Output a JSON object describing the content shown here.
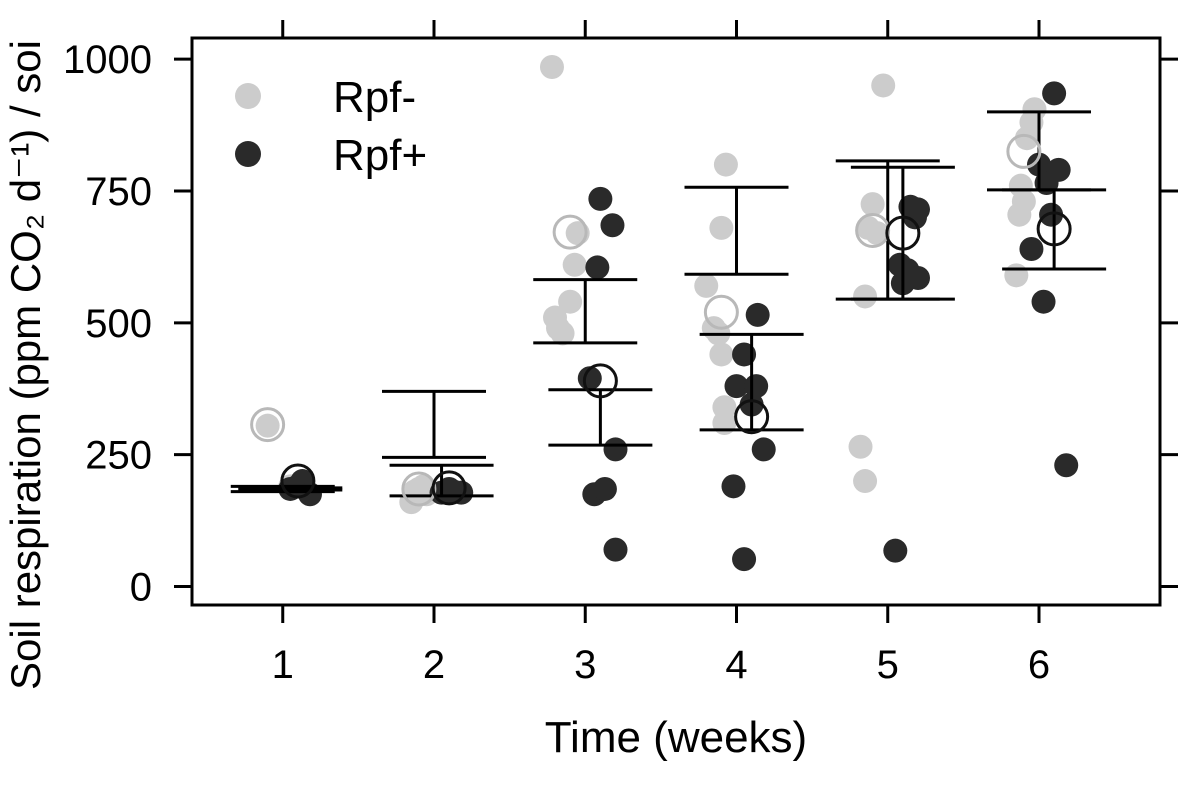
{
  "chart_data": {
    "type": "scatter",
    "xlabel": "Time (weeks)",
    "ylabel": "Soil respiration (ppm CO₂ d⁻¹) / soi",
    "xlim": [
      0.4,
      6.8
    ],
    "ylim": [
      -35,
      1040
    ],
    "x_ticks": [
      1,
      2,
      3,
      4,
      5,
      6
    ],
    "x_tick_labels": [
      "1",
      "2",
      "3",
      "4",
      "5",
      "6"
    ],
    "y_ticks": [
      0,
      250,
      500,
      750,
      1000
    ],
    "y_tick_labels": [
      "0",
      "250",
      "500",
      "750",
      "1000"
    ],
    "grid": false,
    "legend_position": "top-left",
    "series": [
      {
        "name": "Rpf-",
        "color": "#cccccc",
        "points": [
          {
            "x": 0.9,
            "y": 305
          },
          {
            "x": 1.05,
            "y": 190
          },
          {
            "x": 1.85,
            "y": 160
          },
          {
            "x": 1.87,
            "y": 180
          },
          {
            "x": 1.9,
            "y": 185
          },
          {
            "x": 1.93,
            "y": 190
          },
          {
            "x": 1.95,
            "y": 175
          },
          {
            "x": 2.78,
            "y": 985
          },
          {
            "x": 2.8,
            "y": 510
          },
          {
            "x": 2.82,
            "y": 490
          },
          {
            "x": 2.85,
            "y": 480
          },
          {
            "x": 2.9,
            "y": 540
          },
          {
            "x": 2.93,
            "y": 610
          },
          {
            "x": 2.95,
            "y": 670
          },
          {
            "x": 3.8,
            "y": 570
          },
          {
            "x": 3.85,
            "y": 490
          },
          {
            "x": 3.88,
            "y": 480
          },
          {
            "x": 3.9,
            "y": 680
          },
          {
            "x": 3.9,
            "y": 440
          },
          {
            "x": 3.92,
            "y": 340
          },
          {
            "x": 3.92,
            "y": 310
          },
          {
            "x": 3.93,
            "y": 800
          },
          {
            "x": 4.82,
            "y": 265
          },
          {
            "x": 4.85,
            "y": 200
          },
          {
            "x": 4.85,
            "y": 550
          },
          {
            "x": 4.87,
            "y": 680
          },
          {
            "x": 4.9,
            "y": 725
          },
          {
            "x": 4.93,
            "y": 670
          },
          {
            "x": 4.97,
            "y": 950
          },
          {
            "x": 5.85,
            "y": 590
          },
          {
            "x": 5.87,
            "y": 705
          },
          {
            "x": 5.88,
            "y": 760
          },
          {
            "x": 5.9,
            "y": 730
          },
          {
            "x": 5.92,
            "y": 850
          },
          {
            "x": 5.95,
            "y": 880
          },
          {
            "x": 5.97,
            "y": 905
          }
        ],
        "mean_points": [
          {
            "x": 0.9,
            "y": 307
          },
          {
            "x": 1.9,
            "y": 185
          },
          {
            "x": 2.9,
            "y": 672
          },
          {
            "x": 3.9,
            "y": 520
          },
          {
            "x": 4.9,
            "y": 675
          },
          {
            "x": 5.9,
            "y": 825
          }
        ],
        "error_bars": [
          {
            "x": 1,
            "lower": 180,
            "upper": 190
          },
          {
            "x": 2,
            "lower": 245,
            "upper": 370
          },
          {
            "x": 3,
            "lower": 462,
            "upper": 582
          },
          {
            "x": 4,
            "lower": 592,
            "upper": 757
          },
          {
            "x": 5,
            "lower": 545,
            "upper": 807
          },
          {
            "x": 6,
            "lower": 752,
            "upper": 900
          }
        ]
      },
      {
        "name": "Rpf+",
        "color": "#2a2a2a",
        "points": [
          {
            "x": 1.05,
            "y": 185
          },
          {
            "x": 1.1,
            "y": 190
          },
          {
            "x": 1.13,
            "y": 200
          },
          {
            "x": 1.18,
            "y": 175
          },
          {
            "x": 2.05,
            "y": 178
          },
          {
            "x": 2.1,
            "y": 185
          },
          {
            "x": 2.13,
            "y": 180
          },
          {
            "x": 2.18,
            "y": 178
          },
          {
            "x": 3.03,
            "y": 395
          },
          {
            "x": 3.06,
            "y": 175
          },
          {
            "x": 3.08,
            "y": 605
          },
          {
            "x": 3.1,
            "y": 735
          },
          {
            "x": 3.13,
            "y": 185
          },
          {
            "x": 3.18,
            "y": 685
          },
          {
            "x": 3.2,
            "y": 260
          },
          {
            "x": 3.2,
            "y": 70
          },
          {
            "x": 3.98,
            "y": 190
          },
          {
            "x": 4.0,
            "y": 380
          },
          {
            "x": 4.05,
            "y": 440
          },
          {
            "x": 4.05,
            "y": 52
          },
          {
            "x": 4.1,
            "y": 345
          },
          {
            "x": 4.13,
            "y": 380
          },
          {
            "x": 4.14,
            "y": 515
          },
          {
            "x": 4.18,
            "y": 260
          },
          {
            "x": 5.05,
            "y": 68
          },
          {
            "x": 5.08,
            "y": 610
          },
          {
            "x": 5.1,
            "y": 575
          },
          {
            "x": 5.13,
            "y": 600
          },
          {
            "x": 5.15,
            "y": 720
          },
          {
            "x": 5.18,
            "y": 700
          },
          {
            "x": 5.2,
            "y": 585
          },
          {
            "x": 5.2,
            "y": 715
          },
          {
            "x": 5.95,
            "y": 640
          },
          {
            "x": 6.0,
            "y": 800
          },
          {
            "x": 6.03,
            "y": 540
          },
          {
            "x": 6.05,
            "y": 765
          },
          {
            "x": 6.08,
            "y": 705
          },
          {
            "x": 6.1,
            "y": 935
          },
          {
            "x": 6.13,
            "y": 790
          },
          {
            "x": 6.18,
            "y": 230
          }
        ],
        "mean_points": [
          {
            "x": 1.1,
            "y": 200
          },
          {
            "x": 2.1,
            "y": 187
          },
          {
            "x": 3.1,
            "y": 390
          },
          {
            "x": 4.1,
            "y": 322
          },
          {
            "x": 5.1,
            "y": 670
          },
          {
            "x": 6.1,
            "y": 678
          }
        ],
        "error_bars": [
          {
            "x": 1.05,
            "lower": 183,
            "upper": 187
          },
          {
            "x": 2.05,
            "lower": 172,
            "upper": 230
          },
          {
            "x": 3.1,
            "lower": 268,
            "upper": 373
          },
          {
            "x": 4.1,
            "lower": 297,
            "upper": 478
          },
          {
            "x": 5.1,
            "lower": 545,
            "upper": 795
          },
          {
            "x": 6.1,
            "lower": 602,
            "upper": 752
          }
        ]
      }
    ]
  }
}
